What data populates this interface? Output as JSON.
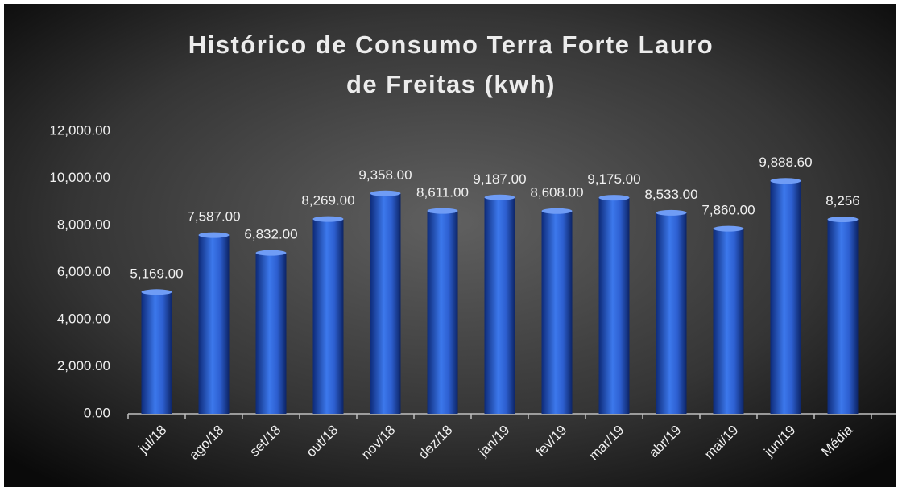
{
  "chart_data": {
    "type": "bar",
    "title": [
      "Histórico de Consumo Terra Forte Lauro",
      "de Freitas (kwh)"
    ],
    "categories": [
      "jul/18",
      "ago/18",
      "set/18",
      "out/18",
      "nov/18",
      "dez/18",
      "jan/19",
      "fev/19",
      "mar/19",
      "abr/19",
      "mai/19",
      "jun/19",
      "Média"
    ],
    "values": [
      5169,
      7587,
      6832,
      8269,
      9358,
      8611,
      9187,
      8608,
      9175,
      8533,
      7860,
      9888.6,
      8256
    ],
    "value_labels": [
      "5,169.00",
      "7,587.00",
      "6,832.00",
      "8,269.00",
      "9,358.00",
      "8,611.00",
      "9,187.00",
      "8,608.00",
      "9,175.00",
      "8,533.00",
      "7,860.00",
      "9,888.60",
      "8,256"
    ],
    "color": "#2f64d8",
    "ylim": [
      0,
      12000
    ],
    "yticks": [
      {
        "value": 0,
        "label": "0.00"
      },
      {
        "value": 2000,
        "label": "2,000.00"
      },
      {
        "value": 4000,
        "label": "4,000.00"
      },
      {
        "value": 6000,
        "label": "6,000.00"
      },
      {
        "value": 8000,
        "label": "8,000.00"
      },
      {
        "value": 10000,
        "label": "10,000.00"
      },
      {
        "value": 12000,
        "label": "12,000.00"
      }
    ],
    "grid": false
  }
}
